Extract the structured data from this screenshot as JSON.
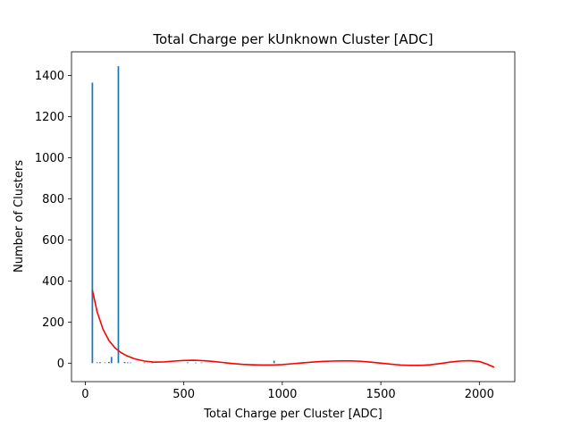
{
  "chart_data": {
    "type": "bar",
    "title": "Total Charge per kUnknown Cluster [ADC]",
    "xlabel": "Total Charge per Cluster [ADC]",
    "ylabel": "Number of Clusters",
    "xlim": [
      -70,
      2180
    ],
    "ylim": [
      -90,
      1515
    ],
    "xticks": [
      0,
      500,
      1000,
      1500,
      2000
    ],
    "yticks": [
      0,
      200,
      400,
      600,
      800,
      1000,
      1200,
      1400
    ],
    "grid": false,
    "legend": "none",
    "bar_color": "#1f77b4",
    "fit_color": "#ff0000",
    "series": [
      {
        "type": "histogram",
        "bin_width": 8,
        "x": [
          36,
          60,
          75,
          100,
          120,
          133,
          168,
          200,
          215,
          230,
          300,
          340,
          520,
          560,
          590,
          958
        ],
        "values": [
          1365,
          4,
          5,
          3,
          6,
          30,
          1445,
          6,
          4,
          3,
          3,
          3,
          4,
          3,
          3,
          12
        ]
      },
      {
        "type": "line",
        "x": [
          36,
          60,
          90,
          120,
          150,
          180,
          210,
          250,
          300,
          350,
          400,
          450,
          500,
          550,
          600,
          650,
          700,
          750,
          800,
          850,
          900,
          950,
          1000,
          1050,
          1100,
          1150,
          1200,
          1250,
          1300,
          1350,
          1400,
          1450,
          1500,
          1550,
          1600,
          1650,
          1700,
          1750,
          1800,
          1850,
          1900,
          1950,
          2000,
          2040,
          2075
        ],
        "values": [
          355,
          250,
          165,
          110,
          75,
          52,
          36,
          21,
          10,
          5,
          6,
          10,
          13,
          14,
          12,
          8,
          3,
          -2,
          -6,
          -8,
          -9,
          -9,
          -7,
          -3,
          1,
          5,
          8,
          10,
          11,
          11,
          9,
          5,
          0,
          -5,
          -9,
          -11,
          -11,
          -8,
          -2,
          5,
          10,
          12,
          8,
          -5,
          -20
        ]
      }
    ]
  }
}
